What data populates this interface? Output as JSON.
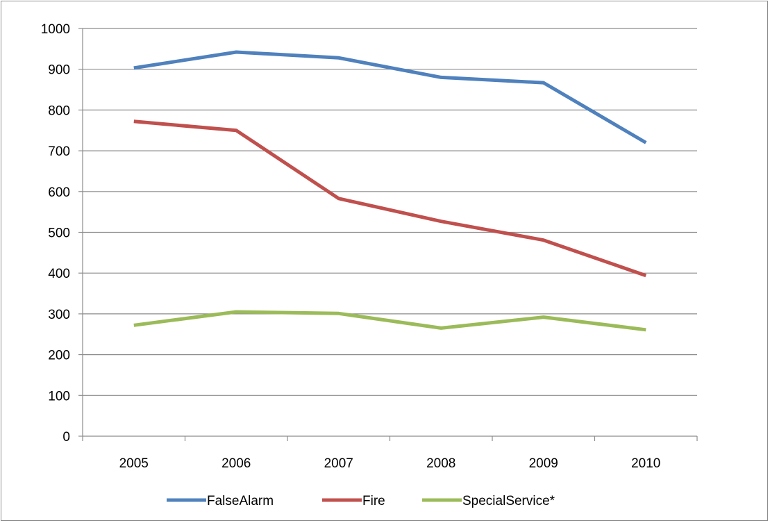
{
  "chart_data": {
    "type": "line",
    "title": "",
    "xlabel": "",
    "ylabel": "",
    "categories": [
      "2005",
      "2006",
      "2007",
      "2008",
      "2009",
      "2010"
    ],
    "ylim": [
      0,
      1000
    ],
    "yticks": [
      0,
      100,
      200,
      300,
      400,
      500,
      600,
      700,
      800,
      900,
      1000
    ],
    "grid": true,
    "legend_position": "bottom",
    "series": [
      {
        "name": "FalseAlarm",
        "color": "#4f81bd",
        "values": [
          903,
          942,
          928,
          880,
          867,
          720
        ]
      },
      {
        "name": "Fire",
        "color": "#c0504d",
        "values": [
          772,
          750,
          583,
          527,
          481,
          394
        ]
      },
      {
        "name": "SpecialService*",
        "color": "#9bbb59",
        "values": [
          272,
          305,
          301,
          265,
          292,
          261
        ]
      }
    ]
  }
}
